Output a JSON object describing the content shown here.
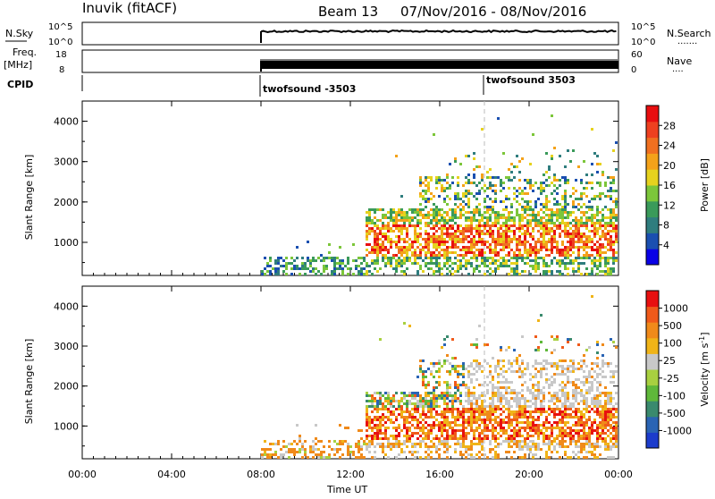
{
  "header": {
    "station": "Inuvik (fitACF)",
    "beam_label": "Beam 13",
    "date_range": "07/Nov/2016 - 08/Nov/2016"
  },
  "panels": {
    "nsky_label": "N.Sky",
    "nsearch_label": "N.Search",
    "nsearch_dots": ".......",
    "freq_label": "Freq.",
    "freq_unit": "[MHz]",
    "nave_label": "Nave",
    "nave_dots": "....",
    "cpid_label": "CPID",
    "cpid_1": "twofsound -3503",
    "cpid_2": "twofsound 3503",
    "nsky_ticks": [
      "10^5",
      "10^0"
    ],
    "nsearch_ticks": [
      "10^5",
      "10^0"
    ],
    "freq_ticks": [
      "18",
      "8"
    ],
    "nave_ticks": [
      "60",
      "0"
    ]
  },
  "chart_data": [
    {
      "type": "heatmap",
      "name_hint": "power",
      "ylabel": "Slant Range [km]",
      "yticks": [
        1000,
        2000,
        3000,
        4000
      ],
      "ylim": [
        180,
        4500
      ],
      "x_ticks": [
        "00:00",
        "04:00",
        "08:00",
        "12:00",
        "16:00",
        "20:00",
        "00:00"
      ],
      "xlim_hours": [
        0,
        24
      ],
      "colorbar": {
        "label": "Power [dB]",
        "ticks": [
          "4",
          "8",
          "12",
          "16",
          "20",
          "24",
          "28"
        ],
        "colors": [
          "#0a00e6",
          "#1a4fb0",
          "#2f7d7e",
          "#3a9a5a",
          "#7cc63a",
          "#e6d21e",
          "#f4a21a",
          "#f07020",
          "#ee4020",
          "#e80e10"
        ]
      },
      "data_start_hour": 8
    },
    {
      "type": "heatmap",
      "name_hint": "velocity",
      "ylabel": "Slant Range [km]",
      "yticks": [
        1000,
        2000,
        3000,
        4000
      ],
      "ylim": [
        180,
        4500
      ],
      "x_ticks": [
        "00:00",
        "04:00",
        "08:00",
        "12:00",
        "16:00",
        "20:00",
        "00:00"
      ],
      "xlabel": "Time UT",
      "xlim_hours": [
        0,
        24
      ],
      "colorbar": {
        "label": "Velocity [m s",
        "label_sup": "-1",
        "label_end": "]",
        "ticks": [
          "1000",
          "500",
          "100",
          "25",
          "-25",
          "-100",
          "-500",
          "-1000"
        ],
        "colors": [
          "#1c3ccc",
          "#2a64b4",
          "#3a8a6e",
          "#5fb83a",
          "#a8d040",
          "#c8c8c8",
          "#f0b418",
          "#f08a1a",
          "#f05a1a",
          "#e81010"
        ]
      },
      "data_start_hour": 8
    }
  ]
}
